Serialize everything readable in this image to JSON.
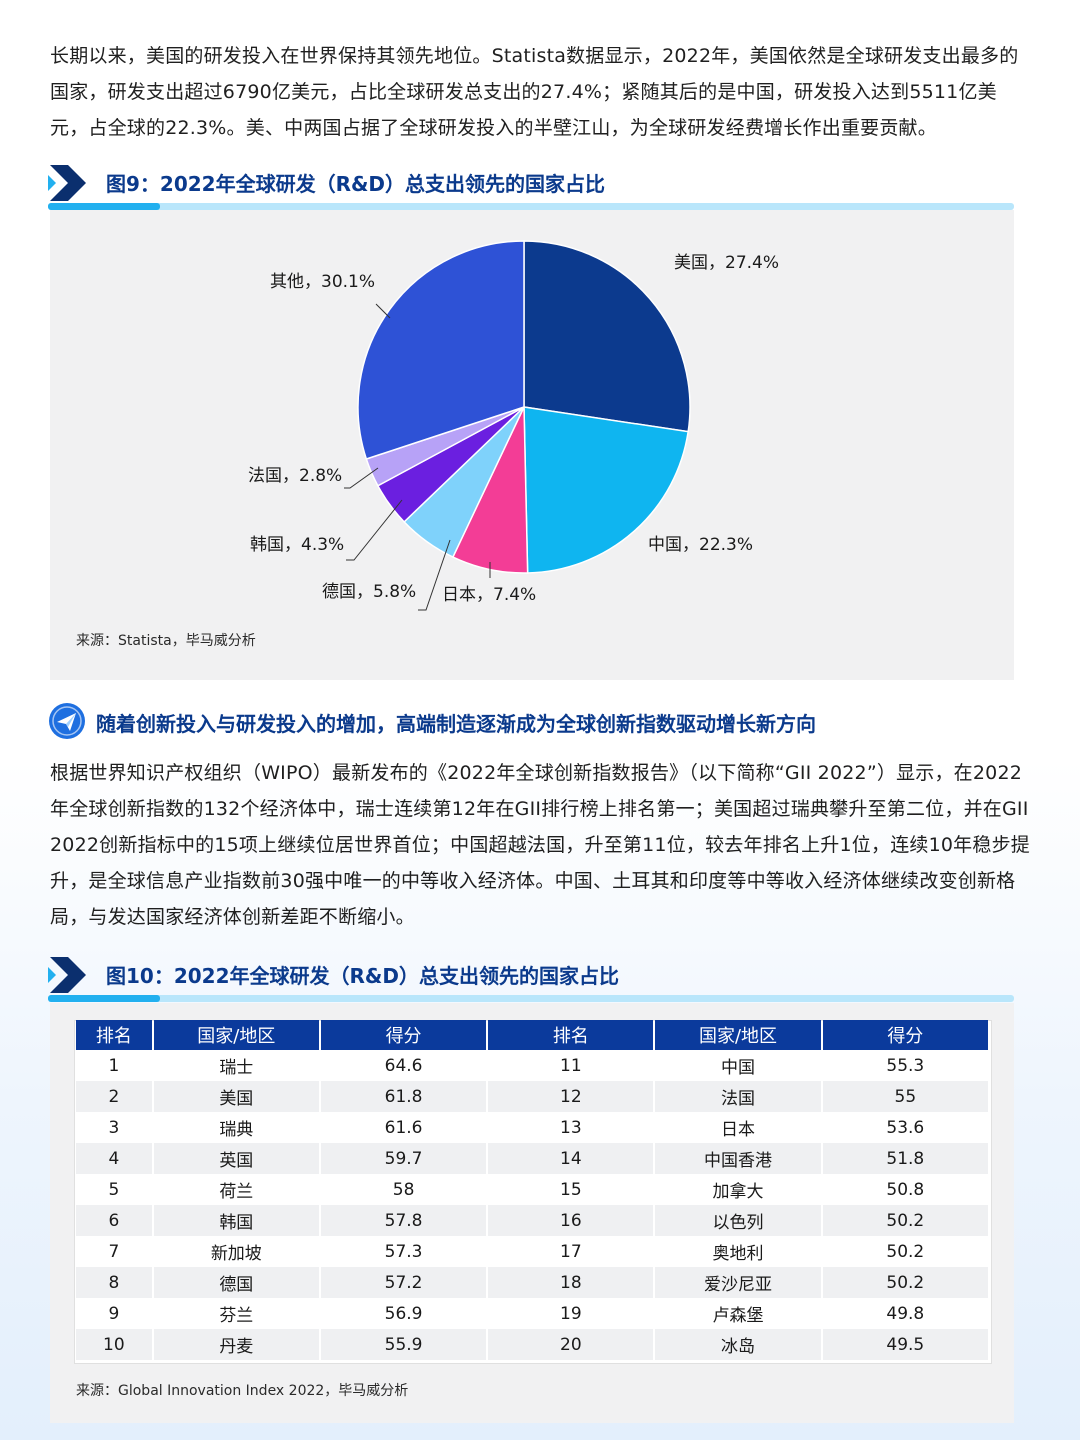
{
  "intro_paragraph": "长期以来，美国的研发投入在世界保持其领先地位。Statista数据显示，2022年，美国依然是全球研发支出最多的国家，研发支出超过6790亿美元，占比全球研发总支出的27.4%；紧随其后的是中国，研发投入达到5511亿美元，占全球的22.3%。美、中两国占据了全球研发投入的半壁江山，为全球研发经费增长作出重要贡献。",
  "figure9": {
    "title": "图9：2022年全球研发（R&D）总支出领先的国家占比",
    "source": "来源：Statista，毕马威分析"
  },
  "chart_data": {
    "type": "pie",
    "title": "图9：2022年全球研发（R&D）总支出领先的国家占比",
    "slices": [
      {
        "label": "美国，27.4%",
        "value": 27.4,
        "color": "#0c3a8e"
      },
      {
        "label": "中国，22.3%",
        "value": 22.3,
        "color": "#0fb5f0"
      },
      {
        "label": "日本，7.4%",
        "value": 7.4,
        "color": "#f33d96"
      },
      {
        "label": "德国，5.8%",
        "value": 5.8,
        "color": "#7fd2fb"
      },
      {
        "label": "韩国，4.3%",
        "value": 4.3,
        "color": "#6b1fe0"
      },
      {
        "label": "法国，2.8%",
        "value": 2.8,
        "color": "#b7a2f7"
      },
      {
        "label": "其他，30.1%",
        "value": 30.1,
        "color": "#2e52d6"
      }
    ],
    "start_angle_deg": 0,
    "direction": "clockwise"
  },
  "subheading": "随着创新投入与研发投入的增加，高端制造逐渐成为全球创新指数驱动增长新方向",
  "body_paragraph": "根据世界知识产权组织（WIPO）最新发布的《2022年全球创新指数报告》（以下简称“GII 2022”）显示，在2022年全球创新指数的132个经济体中，瑞士连续第12年在GII排行榜上排名第一；美国超过瑞典攀升至第二位，并在GII 2022创新指标中的15项上继续位居世界首位；中国超越法国，升至第11位，较去年排名上升1位，连续10年稳步提升，是全球信息产业指数前30强中唯一的中等收入经济体。中国、土耳其和印度等中等收入经济体继续改变创新格局，与发达国家经济体创新差距不断缩小。",
  "figure10": {
    "title": "图10：2022年全球研发（R&D）总支出领先的国家占比",
    "source": "来源：Global Innovation Index 2022，毕马威分析",
    "headers": [
      "排名",
      "国家/地区",
      "得分",
      "排名",
      "国家/地区",
      "得分"
    ],
    "rows": [
      [
        "1",
        "瑞士",
        "64.6",
        "11",
        "中国",
        "55.3"
      ],
      [
        "2",
        "美国",
        "61.8",
        "12",
        "法国",
        "55"
      ],
      [
        "3",
        "瑞典",
        "61.6",
        "13",
        "日本",
        "53.6"
      ],
      [
        "4",
        "英国",
        "59.7",
        "14",
        "中国香港",
        "51.8"
      ],
      [
        "5",
        "荷兰",
        "58",
        "15",
        "加拿大",
        "50.8"
      ],
      [
        "6",
        "韩国",
        "57.8",
        "16",
        "以色列",
        "50.2"
      ],
      [
        "7",
        "新加坡",
        "57.3",
        "17",
        "奥地利",
        "50.2"
      ],
      [
        "8",
        "德国",
        "57.2",
        "18",
        "爱沙尼亚",
        "50.2"
      ],
      [
        "9",
        "芬兰",
        "56.9",
        "19",
        "卢森堡",
        "49.8"
      ],
      [
        "10",
        "丹麦",
        "55.9",
        "20",
        "冰岛",
        "49.5"
      ]
    ]
  },
  "colors": {
    "heading_blue": "#0b3a8c",
    "table_header": "#0b3a9c",
    "accent_cyan": "#22b0ef"
  }
}
